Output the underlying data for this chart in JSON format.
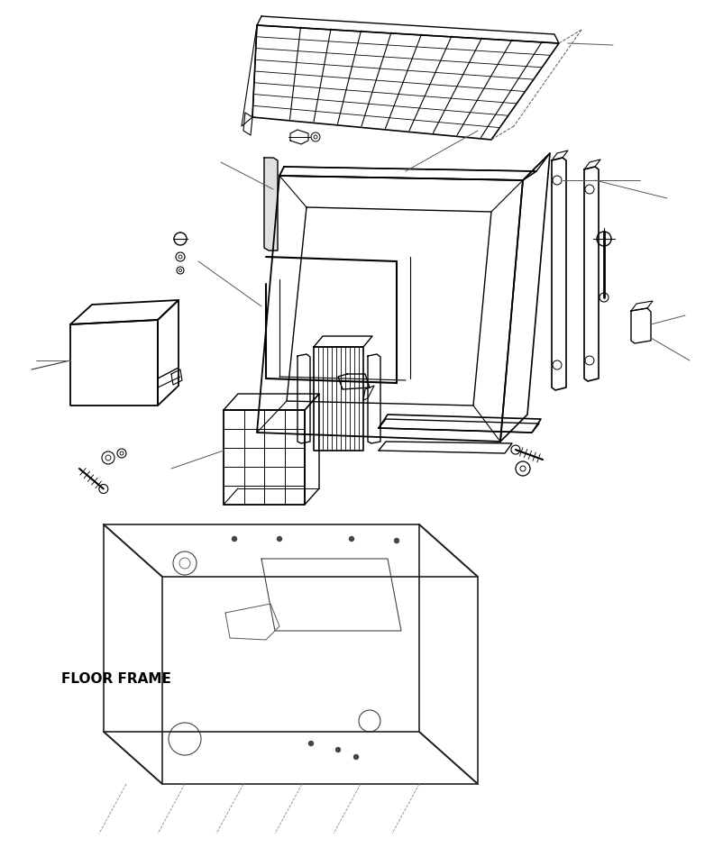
{
  "background_color": "#ffffff",
  "line_color": "#000000",
  "line_width": 1.0,
  "floor_frame_label": "FLOOR FRAME",
  "figsize": [
    7.92,
    9.61
  ],
  "dpi": 100
}
